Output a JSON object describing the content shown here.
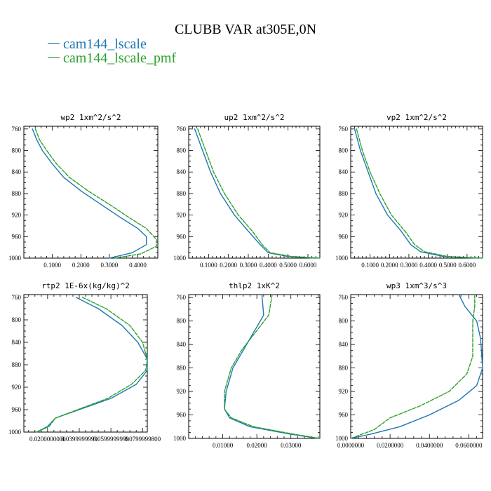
{
  "figure": {
    "title": "CLUBB VAR at305E,0N",
    "legend": [
      {
        "label": "cam144_lscale",
        "color": "#1f77b4"
      },
      {
        "label": "cam144_lscale_pmf",
        "color": "#2ca02c"
      }
    ]
  },
  "chart_data": [
    {
      "type": "line",
      "title": "wp2  1xm^2/s^2",
      "xlim": [
        0,
        0.47
      ],
      "ylim": [
        1000,
        755
      ],
      "xticks": [
        0.1,
        0.2,
        0.3,
        0.4
      ],
      "xtick_labels": [
        "0.1000",
        "0.2000",
        "0.3000",
        "0.4000"
      ],
      "yticks": [
        760,
        800,
        840,
        880,
        920,
        960,
        1000
      ],
      "series": [
        {
          "name": "cam144_lscale",
          "color": "#1f77b4",
          "points": [
            [
              0.03,
              760
            ],
            [
              0.045,
              780
            ],
            [
              0.065,
              800
            ],
            [
              0.1,
              825
            ],
            [
              0.14,
              850
            ],
            [
              0.2,
              875
            ],
            [
              0.27,
              900
            ],
            [
              0.34,
              925
            ],
            [
              0.4,
              945
            ],
            [
              0.43,
              960
            ],
            [
              0.43,
              975
            ],
            [
              0.38,
              990
            ],
            [
              0.3,
              1000
            ]
          ]
        },
        {
          "name": "cam144_lscale_pmf",
          "color": "#2ca02c",
          "dashed": true,
          "points": [
            [
              0.04,
              760
            ],
            [
              0.055,
              780
            ],
            [
              0.08,
              800
            ],
            [
              0.115,
              825
            ],
            [
              0.16,
              850
            ],
            [
              0.225,
              875
            ],
            [
              0.3,
              900
            ],
            [
              0.37,
              925
            ],
            [
              0.43,
              945
            ],
            [
              0.465,
              965
            ],
            [
              0.465,
              978
            ],
            [
              0.41,
              992
            ],
            [
              0.32,
              1000
            ]
          ]
        }
      ]
    },
    {
      "type": "line",
      "title": "up2  1xm^2/s^2",
      "xlim": [
        0,
        0.66
      ],
      "ylim": [
        1000,
        755
      ],
      "xticks": [
        0.1,
        0.2,
        0.3,
        0.4,
        0.5,
        0.6
      ],
      "xtick_labels": [
        "0.1000",
        "0.2000",
        "0.3000",
        "0.4000",
        "0.5000",
        "0.6000"
      ],
      "yticks": [
        760,
        800,
        840,
        880,
        920,
        960,
        1000
      ],
      "series": [
        {
          "name": "cam144_lscale",
          "color": "#1f77b4",
          "points": [
            [
              0.03,
              760
            ],
            [
              0.07,
              800
            ],
            [
              0.11,
              840
            ],
            [
              0.16,
              880
            ],
            [
              0.23,
              920
            ],
            [
              0.3,
              950
            ],
            [
              0.36,
              975
            ],
            [
              0.4,
              990
            ],
            [
              0.5,
              997
            ],
            [
              0.64,
              1000
            ]
          ]
        },
        {
          "name": "cam144_lscale_pmf",
          "color": "#2ca02c",
          "dashed": true,
          "points": [
            [
              0.045,
              760
            ],
            [
              0.085,
              800
            ],
            [
              0.125,
              840
            ],
            [
              0.18,
              880
            ],
            [
              0.25,
              920
            ],
            [
              0.32,
              950
            ],
            [
              0.37,
              975
            ],
            [
              0.41,
              990
            ],
            [
              0.52,
              997
            ],
            [
              0.66,
              1000
            ]
          ]
        }
      ]
    },
    {
      "type": "line",
      "title": "vp2  1xm^2/s^2",
      "xlim": [
        0,
        0.68
      ],
      "ylim": [
        1000,
        755
      ],
      "xticks": [
        0.1,
        0.2,
        0.3,
        0.4,
        0.5,
        0.6
      ],
      "xtick_labels": [
        "0.1000",
        "0.2000",
        "0.3000",
        "0.4000",
        "0.5000",
        "0.6000"
      ],
      "yticks": [
        760,
        800,
        840,
        880,
        920,
        960,
        1000
      ],
      "series": [
        {
          "name": "cam144_lscale",
          "color": "#1f77b4",
          "points": [
            [
              0.02,
              760
            ],
            [
              0.05,
              800
            ],
            [
              0.09,
              840
            ],
            [
              0.13,
              880
            ],
            [
              0.19,
              920
            ],
            [
              0.26,
              950
            ],
            [
              0.31,
              975
            ],
            [
              0.36,
              988
            ],
            [
              0.48,
              997
            ],
            [
              0.66,
              1000
            ]
          ]
        },
        {
          "name": "cam144_lscale_pmf",
          "color": "#2ca02c",
          "dashed": true,
          "points": [
            [
              0.03,
              760
            ],
            [
              0.06,
              800
            ],
            [
              0.1,
              840
            ],
            [
              0.15,
              880
            ],
            [
              0.21,
              920
            ],
            [
              0.28,
              950
            ],
            [
              0.33,
              975
            ],
            [
              0.38,
              988
            ],
            [
              0.5,
              997
            ],
            [
              0.68,
              1000
            ]
          ]
        }
      ]
    },
    {
      "type": "line",
      "title": "rtp2  1E-6x(kg/kg)^2",
      "xlim": [
        0.005,
        0.083
      ],
      "ylim": [
        1000,
        755
      ],
      "xticks": [
        0.02,
        0.04,
        0.06,
        0.08
      ],
      "xtick_labels": [
        "0.0200000000",
        "0.0399999999",
        "0.0599999999",
        "0.0799999800"
      ],
      "yticks": [
        760,
        800,
        840,
        880,
        920,
        960,
        1000
      ],
      "series": [
        {
          "name": "cam144_lscale",
          "color": "#1f77b4",
          "points": [
            [
              0.038,
              760
            ],
            [
              0.052,
              780
            ],
            [
              0.067,
              810
            ],
            [
              0.077,
              840
            ],
            [
              0.083,
              870
            ],
            [
              0.083,
              890
            ],
            [
              0.076,
              915
            ],
            [
              0.06,
              940
            ],
            [
              0.04,
              960
            ],
            [
              0.025,
              975
            ],
            [
              0.02,
              990
            ],
            [
              0.013,
              1000
            ]
          ]
        },
        {
          "name": "cam144_lscale_pmf",
          "color": "#2ca02c",
          "dashed": true,
          "points": [
            [
              0.042,
              760
            ],
            [
              0.057,
              780
            ],
            [
              0.072,
              810
            ],
            [
              0.08,
              840
            ],
            [
              0.083,
              870
            ],
            [
              0.082,
              890
            ],
            [
              0.073,
              915
            ],
            [
              0.058,
              940
            ],
            [
              0.039,
              960
            ],
            [
              0.025,
              975
            ],
            [
              0.021,
              990
            ],
            [
              0.013,
              1000
            ]
          ]
        }
      ]
    },
    {
      "type": "line",
      "title": "thlp2  1xK^2",
      "xlim": [
        0,
        0.0385
      ],
      "ylim": [
        1000,
        755
      ],
      "xticks": [
        0.01,
        0.02,
        0.03
      ],
      "xtick_labels": [
        "0.01000",
        "0.02000",
        "0.03000"
      ],
      "yticks": [
        760,
        800,
        840,
        880,
        920,
        960,
        1000
      ],
      "series": [
        {
          "name": "cam144_lscale",
          "color": "#1f77b4",
          "points": [
            [
              0.0215,
              755
            ],
            [
              0.022,
              790
            ],
            [
              0.019,
              820
            ],
            [
              0.016,
              850
            ],
            [
              0.013,
              880
            ],
            [
              0.011,
              920
            ],
            [
              0.0105,
              950
            ],
            [
              0.012,
              965
            ],
            [
              0.018,
              980
            ],
            [
              0.03,
              993
            ],
            [
              0.038,
              1000
            ]
          ]
        },
        {
          "name": "cam144_lscale_pmf",
          "color": "#2ca02c",
          "dashed": true,
          "points": [
            [
              0.0245,
              755
            ],
            [
              0.0235,
              790
            ],
            [
              0.0195,
              820
            ],
            [
              0.0155,
              850
            ],
            [
              0.0125,
              880
            ],
            [
              0.0105,
              920
            ],
            [
              0.0105,
              950
            ],
            [
              0.0125,
              965
            ],
            [
              0.019,
              980
            ],
            [
              0.031,
              993
            ],
            [
              0.0385,
              1000
            ]
          ]
        }
      ]
    },
    {
      "type": "line",
      "title": "wp3  1xm^3/s^3",
      "xlim": [
        0,
        0.067
      ],
      "ylim": [
        1000,
        755
      ],
      "xticks": [
        0,
        0.02,
        0.04,
        0.06
      ],
      "xtick_labels": [
        "0.0000000",
        "0.0200000",
        "0.0400000",
        "0.0600000"
      ],
      "yticks": [
        760,
        800,
        840,
        880,
        920,
        960,
        1000
      ],
      "series": [
        {
          "name": "cam144_lscale",
          "color": "#1f77b4",
          "points": [
            [
              0.055,
              755
            ],
            [
              0.058,
              775
            ],
            [
              0.064,
              800
            ],
            [
              0.066,
              830
            ],
            [
              0.067,
              880
            ],
            [
              0.064,
              910
            ],
            [
              0.055,
              935
            ],
            [
              0.04,
              960
            ],
            [
              0.025,
              980
            ],
            [
              0.01,
              993
            ],
            [
              0.0,
              1000
            ]
          ]
        },
        {
          "name": "cam144_lscale_pmf",
          "color": "#2ca02c",
          "dashed": true,
          "points": [
            [
              0.063,
              755
            ],
            [
              0.063,
              775
            ],
            [
              0.062,
              800
            ],
            [
              0.062,
              830
            ],
            [
              0.062,
              860
            ],
            [
              0.059,
              890
            ],
            [
              0.05,
              920
            ],
            [
              0.035,
              945
            ],
            [
              0.02,
              965
            ],
            [
              0.012,
              985
            ],
            [
              0.0,
              1000
            ]
          ]
        }
      ]
    }
  ]
}
